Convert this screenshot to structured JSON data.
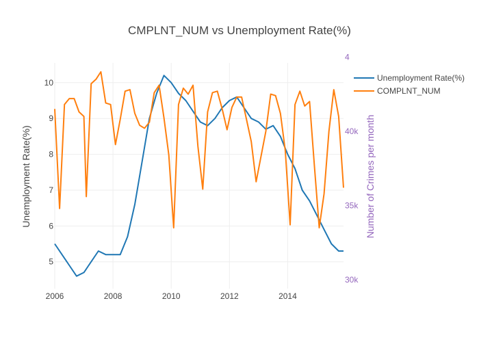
{
  "chart_data": {
    "type": "line",
    "title": "CMPLNT_NUM vs Unemployment Rate(%)",
    "x_ticks": [
      "2006",
      "2008",
      "2010",
      "2012",
      "2014"
    ],
    "xlim": [
      "2006-01",
      "2015-12"
    ],
    "y_axis": {
      "label": "Unemployment Rate(%)",
      "ticks": [
        "5",
        "6",
        "7",
        "8",
        "9",
        "10"
      ],
      "ylim": [
        4.25,
        10.55
      ]
    },
    "y2_axis": {
      "label": "Number of Crimes per month",
      "ticks": [
        "30k",
        "35k",
        "40k",
        "4"
      ],
      "ylim": [
        29400,
        44600
      ],
      "color": "#9467bd"
    },
    "grid": true,
    "legend_position": "top-right",
    "series": [
      {
        "name": "Unemployment Rate(%)",
        "axis": "y",
        "color": "#1f77b4",
        "x": [
          "2006-01",
          "2006-04",
          "2006-07",
          "2006-10",
          "2007-01",
          "2007-04",
          "2007-07",
          "2007-10",
          "2008-01",
          "2008-04",
          "2008-07",
          "2008-10",
          "2009-01",
          "2009-04",
          "2009-07",
          "2009-10",
          "2010-01",
          "2010-04",
          "2010-07",
          "2010-10",
          "2011-01",
          "2011-04",
          "2011-07",
          "2011-10",
          "2012-01",
          "2012-04",
          "2012-07",
          "2012-10",
          "2013-01",
          "2013-04",
          "2013-07",
          "2013-10",
          "2014-01",
          "2014-04",
          "2014-07",
          "2014-10",
          "2015-01",
          "2015-04",
          "2015-07",
          "2015-10",
          "2015-12"
        ],
        "values": [
          5.5,
          5.2,
          4.9,
          4.6,
          4.7,
          5.0,
          5.3,
          5.2,
          5.2,
          5.2,
          5.7,
          6.6,
          7.8,
          9.0,
          9.7,
          10.2,
          10.0,
          9.7,
          9.5,
          9.2,
          8.9,
          8.8,
          9.0,
          9.3,
          9.5,
          9.6,
          9.3,
          9.0,
          8.9,
          8.7,
          8.8,
          8.5,
          8.0,
          7.6,
          7.0,
          6.7,
          6.3,
          5.9,
          5.5,
          5.3,
          5.3
        ]
      },
      {
        "name": "COMPLNT_NUM",
        "axis": "y2",
        "color": "#ff7f0e",
        "x": [
          "2006-01",
          "2006-03",
          "2006-05",
          "2006-07",
          "2006-09",
          "2006-11",
          "2007-01",
          "2007-02",
          "2007-04",
          "2007-06",
          "2007-08",
          "2007-10",
          "2007-12",
          "2008-02",
          "2008-04",
          "2008-06",
          "2008-08",
          "2008-10",
          "2008-12",
          "2009-02",
          "2009-04",
          "2009-06",
          "2009-08",
          "2009-10",
          "2009-12",
          "2010-02",
          "2010-04",
          "2010-06",
          "2010-08",
          "2010-10",
          "2010-12",
          "2011-02",
          "2011-04",
          "2011-06",
          "2011-08",
          "2011-10",
          "2011-12",
          "2012-02",
          "2012-04",
          "2012-06",
          "2012-08",
          "2012-10",
          "2012-12",
          "2013-02",
          "2013-04",
          "2013-06",
          "2013-08",
          "2013-10",
          "2013-12",
          "2014-02",
          "2014-04",
          "2014-06",
          "2014-08",
          "2014-10",
          "2014-12",
          "2015-02",
          "2015-04",
          "2015-06",
          "2015-08",
          "2015-10",
          "2015-12"
        ],
        "values": [
          41500,
          34800,
          41800,
          42200,
          42200,
          41300,
          41000,
          35600,
          43200,
          43500,
          44000,
          41900,
          41800,
          39100,
          40800,
          42700,
          42800,
          41200,
          40400,
          40200,
          40600,
          42600,
          43100,
          40900,
          38400,
          33500,
          41800,
          42900,
          42500,
          43100,
          39000,
          36100,
          41300,
          42600,
          42700,
          41500,
          40100,
          41600,
          42300,
          42300,
          40800,
          39300,
          36600,
          38300,
          40000,
          42500,
          42400,
          41200,
          38700,
          33700,
          41800,
          42700,
          41700,
          42000,
          37700,
          33500,
          35800,
          40000,
          42800,
          41000,
          36200
        ]
      }
    ]
  }
}
